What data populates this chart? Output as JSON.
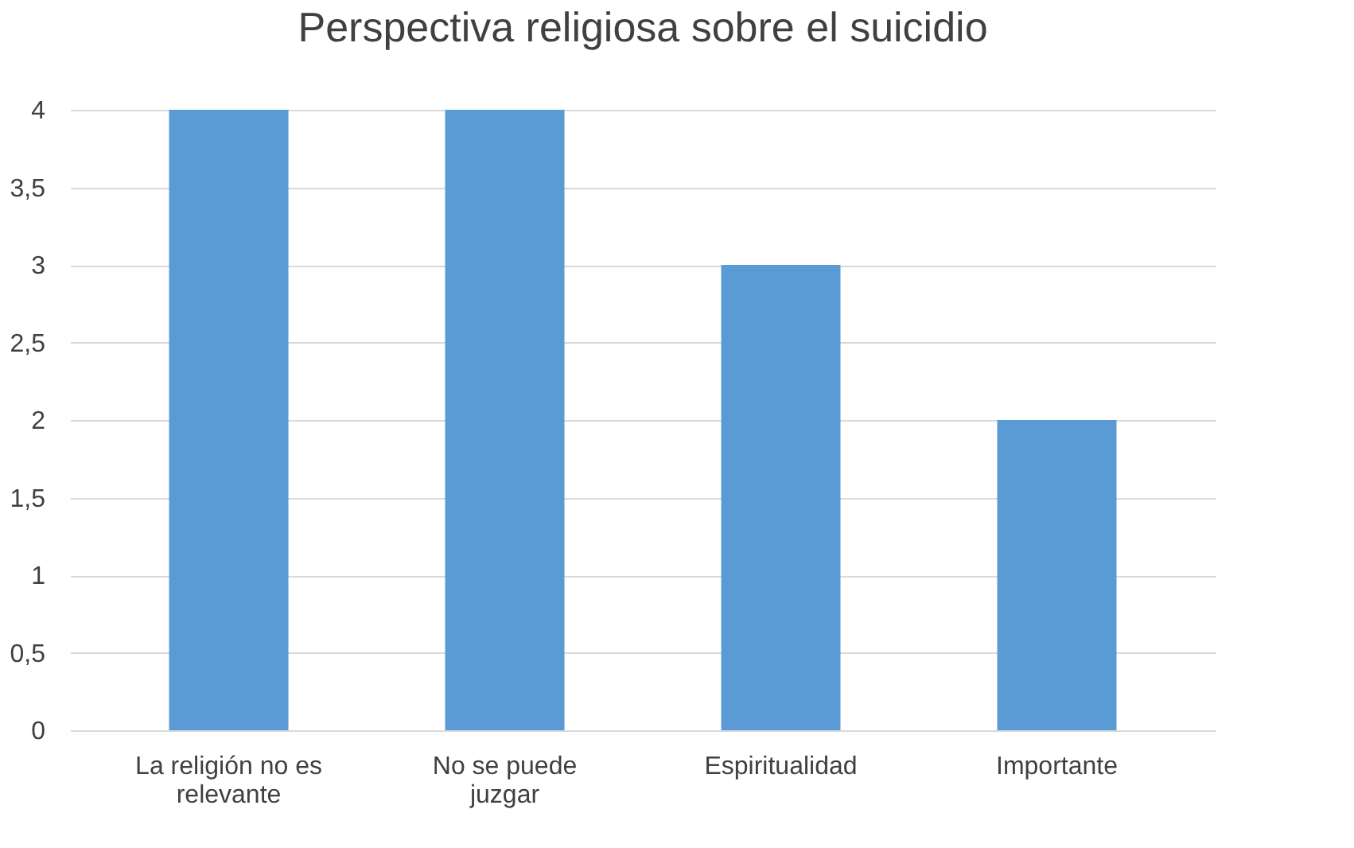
{
  "chart_data": {
    "type": "bar",
    "title": "Perspectiva religiosa sobre el suicidio",
    "categories": [
      "La religión no es relevante",
      "No se puede juzgar",
      "Espiritualidad",
      "Importante"
    ],
    "values": [
      4,
      4,
      3,
      2
    ],
    "color": "#5b9bd5",
    "ylim": [
      0,
      4
    ],
    "yticks": [
      0,
      {
        "value": 0.5,
        "label": "0,5"
      },
      1,
      {
        "value": 1.5,
        "label": "1,5"
      },
      2,
      {
        "value": 2.5,
        "label": "2,5"
      },
      3,
      {
        "value": 3.5,
        "label": "3,5"
      },
      4
    ],
    "grid": "y"
  }
}
